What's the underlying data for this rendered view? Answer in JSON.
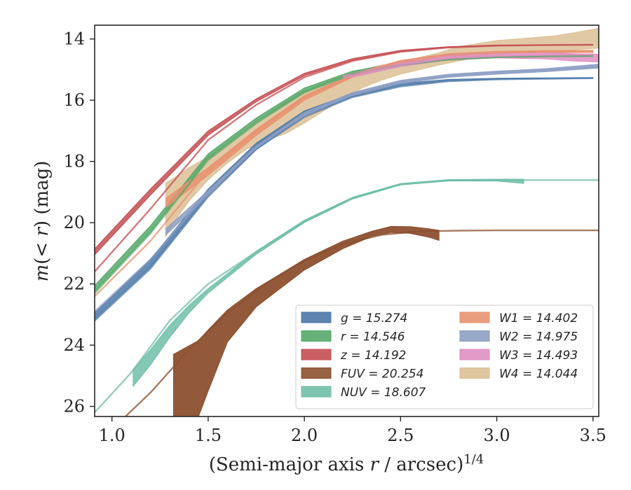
{
  "chart_data": {
    "type": "area",
    "xlabel": "(Semi-major axis r / arcsec)^1/4",
    "ylabel": "m(< r) (mag)",
    "xlim": [
      0.91,
      3.53
    ],
    "ylim": [
      26.33,
      13.55
    ],
    "xticks": [
      "1.0",
      "1.5",
      "2.0",
      "2.5",
      "3.0",
      "3.5"
    ],
    "xtick_values": [
      1.0,
      1.5,
      2.0,
      2.5,
      3.0,
      3.5
    ],
    "yticks": [
      "14",
      "16",
      "18",
      "20",
      "22",
      "24",
      "26"
    ],
    "ytick_values": [
      14,
      16,
      18,
      20,
      22,
      24,
      26
    ],
    "legend_position": "lower-right",
    "series": [
      {
        "name": "g = 15.274",
        "color": "#4c78a8",
        "model": [
          [
            0.91,
            23.2
          ],
          [
            1.2,
            21.5
          ],
          [
            1.5,
            19.15
          ],
          [
            1.75,
            17.6
          ],
          [
            2.0,
            16.55
          ],
          [
            2.25,
            15.9
          ],
          [
            2.5,
            15.55
          ],
          [
            2.75,
            15.38
          ],
          [
            3.0,
            15.32
          ],
          [
            3.25,
            15.3
          ],
          [
            3.5,
            15.28
          ]
        ],
        "band": [
          [
            0.91,
            23.15,
            22.95
          ],
          [
            1.2,
            21.45,
            21.2
          ],
          [
            1.5,
            19.1,
            18.9
          ],
          [
            1.75,
            17.55,
            17.4
          ],
          [
            2.0,
            16.5,
            16.35
          ],
          [
            2.25,
            15.88,
            15.78
          ],
          [
            2.5,
            15.52,
            15.45
          ],
          [
            2.75,
            15.36,
            15.32
          ],
          [
            3.0,
            15.31,
            15.28
          ],
          [
            3.25,
            15.29,
            15.27
          ],
          [
            3.5,
            15.28,
            15.26
          ]
        ]
      },
      {
        "name": "r = 14.546",
        "color": "#55a868",
        "model": [
          [
            0.91,
            22.3
          ],
          [
            1.2,
            20.35
          ],
          [
            1.5,
            17.95
          ],
          [
            1.75,
            16.75
          ],
          [
            2.0,
            15.75
          ],
          [
            2.25,
            15.15
          ],
          [
            2.5,
            14.85
          ],
          [
            2.75,
            14.68
          ],
          [
            3.0,
            14.6
          ],
          [
            3.25,
            14.57
          ],
          [
            3.5,
            14.56
          ]
        ],
        "band": [
          [
            0.91,
            22.25,
            22.05
          ],
          [
            1.2,
            20.3,
            20.1
          ],
          [
            1.5,
            17.9,
            17.75
          ],
          [
            1.75,
            16.7,
            16.58
          ],
          [
            2.0,
            15.72,
            15.6
          ],
          [
            2.25,
            15.12,
            15.05
          ],
          [
            2.5,
            14.83,
            14.78
          ],
          [
            2.75,
            14.67,
            14.63
          ],
          [
            3.0,
            14.59,
            14.57
          ],
          [
            3.25,
            14.56,
            14.55
          ],
          [
            3.5,
            14.56,
            14.54
          ]
        ]
      },
      {
        "name": "z = 14.192",
        "color": "#c44e52",
        "model": [
          [
            0.91,
            21.6
          ],
          [
            1.2,
            19.55
          ],
          [
            1.5,
            17.3
          ],
          [
            1.75,
            16.15
          ],
          [
            2.0,
            15.25
          ],
          [
            2.25,
            14.72
          ],
          [
            2.5,
            14.42
          ],
          [
            2.75,
            14.28
          ],
          [
            3.0,
            14.22
          ],
          [
            3.25,
            14.2
          ],
          [
            3.5,
            14.19
          ]
        ],
        "band": [
          [
            0.91,
            21.05,
            20.85
          ],
          [
            1.2,
            19.1,
            18.9
          ],
          [
            1.5,
            17.15,
            17.0
          ],
          [
            1.75,
            16.05,
            15.95
          ],
          [
            2.0,
            15.2,
            15.12
          ],
          [
            2.25,
            14.7,
            14.64
          ],
          [
            2.5,
            14.41,
            14.37
          ],
          [
            2.75,
            14.27,
            14.25
          ],
          [
            3.0,
            14.22,
            14.2
          ],
          [
            3.25,
            14.2,
            14.19
          ],
          [
            3.5,
            14.19,
            14.18
          ]
        ]
      },
      {
        "name": "FUV = 20.254",
        "color": "#8c5030",
        "model": [
          [
            1.07,
            26.33
          ],
          [
            1.2,
            25.55
          ],
          [
            1.4,
            24.15
          ],
          [
            1.6,
            22.95
          ],
          [
            1.8,
            22.0
          ],
          [
            2.0,
            21.25
          ],
          [
            2.2,
            20.7
          ],
          [
            2.4,
            20.4
          ],
          [
            2.6,
            20.28
          ],
          [
            2.8,
            20.26
          ],
          [
            3.0,
            20.25
          ],
          [
            3.53,
            20.25
          ]
        ],
        "band": [
          [
            1.32,
            24.3,
            26.33
          ],
          [
            1.45,
            23.85,
            26.33
          ],
          [
            1.5,
            23.5,
            25.5
          ],
          [
            1.6,
            22.85,
            23.9
          ],
          [
            1.75,
            22.15,
            22.75
          ],
          [
            2.0,
            21.2,
            21.55
          ],
          [
            2.2,
            20.6,
            20.85
          ],
          [
            2.35,
            20.28,
            20.45
          ],
          [
            2.45,
            20.12,
            20.32
          ],
          [
            2.55,
            20.13,
            20.35
          ],
          [
            2.65,
            20.2,
            20.48
          ],
          [
            2.7,
            20.25,
            20.58
          ]
        ]
      },
      {
        "name": "NUV = 18.607",
        "color": "#6fbea8",
        "model": [
          [
            0.91,
            26.2
          ],
          [
            1.1,
            24.9
          ],
          [
            1.3,
            23.2
          ],
          [
            1.5,
            22.0
          ],
          [
            1.75,
            20.95
          ],
          [
            2.0,
            19.95
          ],
          [
            2.25,
            19.2
          ],
          [
            2.5,
            18.75
          ],
          [
            2.75,
            18.62
          ],
          [
            3.0,
            18.61
          ],
          [
            3.53,
            18.61
          ]
        ],
        "band": [
          [
            1.11,
            24.8,
            25.35
          ],
          [
            1.2,
            24.15,
            24.65
          ],
          [
            1.3,
            23.35,
            23.75
          ],
          [
            1.4,
            22.7,
            22.95
          ],
          [
            1.5,
            22.15,
            22.3
          ],
          [
            1.75,
            20.93,
            21.03
          ],
          [
            2.0,
            19.92,
            20.0
          ],
          [
            2.25,
            19.17,
            19.23
          ],
          [
            2.5,
            18.72,
            18.77
          ],
          [
            2.75,
            18.59,
            18.64
          ],
          [
            3.0,
            18.58,
            18.64
          ],
          [
            3.14,
            18.58,
            18.72
          ]
        ]
      },
      {
        "name": "W1 = 14.402",
        "color": "#e8926f",
        "model": [
          [
            0.91,
            22.4
          ],
          [
            1.2,
            20.6
          ],
          [
            1.5,
            18.3
          ],
          [
            1.75,
            17.0
          ],
          [
            2.0,
            15.9
          ],
          [
            2.25,
            15.2
          ],
          [
            2.5,
            14.75
          ],
          [
            2.75,
            14.52
          ],
          [
            3.0,
            14.45
          ],
          [
            3.25,
            14.42
          ],
          [
            3.5,
            14.41
          ]
        ],
        "band": [
          [
            1.28,
            19.2,
            19.5
          ],
          [
            1.5,
            18.2,
            18.45
          ],
          [
            1.75,
            16.95,
            17.15
          ],
          [
            2.0,
            15.85,
            16.0
          ],
          [
            2.25,
            15.15,
            15.25
          ],
          [
            2.5,
            14.7,
            14.8
          ],
          [
            2.75,
            14.48,
            14.56
          ],
          [
            3.0,
            14.4,
            14.48
          ],
          [
            3.25,
            14.38,
            14.45
          ],
          [
            3.5,
            14.37,
            14.44
          ]
        ]
      },
      {
        "name": "W2 = 14.975",
        "color": "#8c9ec4",
        "model": [
          [
            0.91,
            22.9
          ],
          [
            1.2,
            21.2
          ],
          [
            1.5,
            19.0
          ],
          [
            1.75,
            17.55
          ],
          [
            2.0,
            16.45
          ],
          [
            2.25,
            15.8
          ],
          [
            2.5,
            15.4
          ],
          [
            2.75,
            15.2
          ],
          [
            3.0,
            15.1
          ],
          [
            3.25,
            15.02
          ],
          [
            3.53,
            14.9
          ]
        ],
        "band": [
          [
            1.28,
            20.2,
            20.4
          ],
          [
            1.5,
            18.95,
            19.1
          ],
          [
            1.75,
            17.5,
            17.62
          ],
          [
            2.0,
            16.4,
            16.5
          ],
          [
            2.25,
            15.75,
            15.85
          ],
          [
            2.5,
            15.35,
            15.45
          ],
          [
            2.75,
            15.15,
            15.25
          ],
          [
            3.0,
            15.05,
            15.15
          ],
          [
            3.25,
            14.97,
            15.07
          ],
          [
            3.53,
            14.82,
            14.95
          ]
        ]
      },
      {
        "name": "W3 = 14.493",
        "color": "#df8fc2",
        "model": [
          [
            2.2,
            15.25
          ],
          [
            2.5,
            14.85
          ],
          [
            2.75,
            14.62
          ],
          [
            3.0,
            14.55
          ],
          [
            3.25,
            14.52
          ],
          [
            3.5,
            14.5
          ]
        ],
        "band": [
          [
            2.2,
            15.2,
            15.32
          ],
          [
            2.5,
            14.75,
            14.9
          ],
          [
            2.75,
            14.5,
            14.68
          ],
          [
            3.0,
            14.45,
            14.62
          ],
          [
            3.25,
            14.45,
            14.65
          ],
          [
            3.4,
            14.48,
            14.72
          ],
          [
            3.53,
            14.5,
            14.75
          ]
        ]
      },
      {
        "name": "W4 = 14.044",
        "color": "#dcc095",
        "model": [],
        "band": [
          [
            1.28,
            18.7,
            20.45
          ],
          [
            1.32,
            18.55,
            20.0
          ],
          [
            1.4,
            18.2,
            19.3
          ],
          [
            1.5,
            17.85,
            18.6
          ],
          [
            1.6,
            17.4,
            18.05
          ],
          [
            1.7,
            16.95,
            17.6
          ],
          [
            1.8,
            16.5,
            17.3
          ],
          [
            1.9,
            16.05,
            17.1
          ],
          [
            2.0,
            15.7,
            16.75
          ],
          [
            2.1,
            15.45,
            16.35
          ],
          [
            2.2,
            15.2,
            15.95
          ],
          [
            2.3,
            15.0,
            15.6
          ],
          [
            2.4,
            14.85,
            15.35
          ],
          [
            2.5,
            14.75,
            15.15
          ],
          [
            2.6,
            14.6,
            15.0
          ],
          [
            2.7,
            14.45,
            14.85
          ],
          [
            2.8,
            14.25,
            14.72
          ],
          [
            2.9,
            14.15,
            14.6
          ],
          [
            3.0,
            14.05,
            14.52
          ],
          [
            3.1,
            14.0,
            14.45
          ],
          [
            3.2,
            13.95,
            14.42
          ],
          [
            3.3,
            13.9,
            14.4
          ],
          [
            3.4,
            13.8,
            14.35
          ],
          [
            3.53,
            13.65,
            14.3
          ]
        ]
      }
    ]
  }
}
